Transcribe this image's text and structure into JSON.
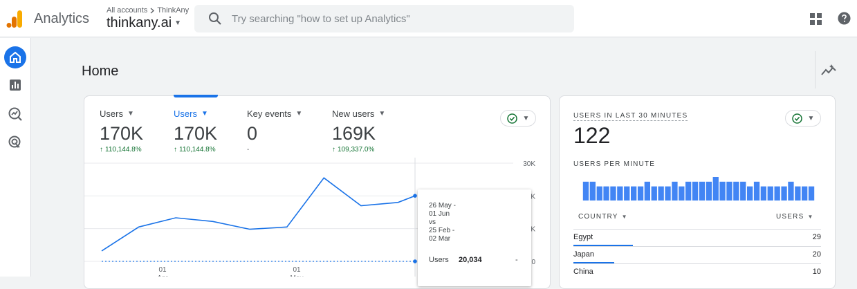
{
  "header": {
    "app_title": "Analytics",
    "breadcrumb_root": "All accounts",
    "breadcrumb_account": "ThinkAny",
    "property_name": "thinkany.ai",
    "search_placeholder": "Try searching \"how to set up Analytics\""
  },
  "page": {
    "title": "Home"
  },
  "metrics": [
    {
      "label": "Users",
      "value": "170K",
      "delta": "110,144.8%"
    },
    {
      "label": "Users",
      "value": "170K",
      "delta": "110,144.8%"
    },
    {
      "label": "Key events",
      "value": "0",
      "delta": "-"
    },
    {
      "label": "New users",
      "value": "169K",
      "delta": "109,337.0%"
    }
  ],
  "chart_data": {
    "type": "line",
    "title": "Users",
    "x_labels": [
      {
        "day": "01",
        "month": "Apr"
      },
      {
        "day": "01",
        "month": "May"
      }
    ],
    "y_tick_labels": [
      "30K",
      "K",
      "K",
      "0"
    ],
    "series": [
      {
        "name": "Users (26 May - 01 Jun)",
        "style": "solid",
        "values": [
          3200,
          10500,
          13300,
          12200,
          9800,
          10500,
          25500,
          17000,
          18000,
          20034,
          20034
        ]
      },
      {
        "name": "Users (25 Feb - 02 Mar)",
        "style": "dashed",
        "values": [
          0,
          0,
          0,
          0,
          0,
          0,
          0,
          0,
          0,
          0,
          0
        ]
      }
    ],
    "ylim": [
      0,
      30000
    ],
    "colors": {
      "primary": "#1a73e8",
      "comparison": "#1a73e8"
    }
  },
  "tooltip": {
    "range_line_1": "26 May -",
    "range_line_2": "01 Jun",
    "range_line_3": "vs",
    "range_line_4": "25 Feb -",
    "range_line_5": "02 Mar",
    "metric": "Users",
    "value": "20,034",
    "comparison": "-"
  },
  "realtime": {
    "title": "USERS IN LAST 30 MINUTES",
    "value": "122",
    "per_minute_label": "USERS PER MINUTE",
    "per_minute": [
      4,
      4,
      3,
      3,
      3,
      3,
      3,
      3,
      3,
      4,
      3,
      3,
      3,
      4,
      3,
      4,
      4,
      4,
      4,
      5,
      4,
      4,
      4,
      4,
      3,
      4,
      3,
      3,
      3,
      3,
      4,
      3,
      3,
      3
    ],
    "col_country": "COUNTRY",
    "col_users": "USERS",
    "rows": [
      {
        "country": "Egypt",
        "users": "29"
      },
      {
        "country": "Japan",
        "users": "20"
      },
      {
        "country": "China",
        "users": "10"
      }
    ]
  },
  "colors": {
    "accent": "#1a73e8",
    "positive": "#137333",
    "logo_orange": "#f9ab00",
    "logo_dark": "#e37400"
  }
}
